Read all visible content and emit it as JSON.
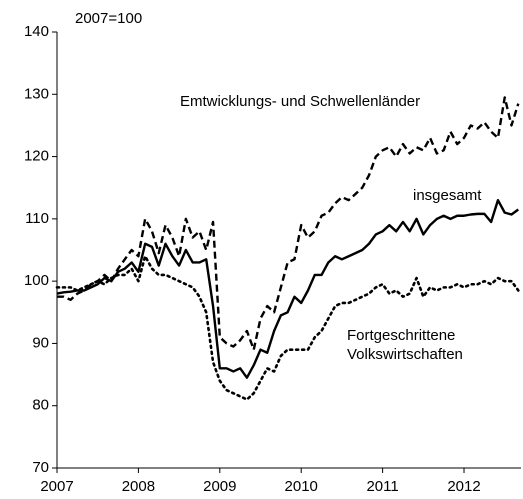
{
  "chart_data": {
    "type": "line",
    "annotations": [
      "2007=100"
    ],
    "x": [
      2007,
      2007.083,
      2007.167,
      2007.25,
      2007.333,
      2007.417,
      2007.5,
      2007.583,
      2007.667,
      2007.75,
      2007.833,
      2007.917,
      2008,
      2008.083,
      2008.167,
      2008.25,
      2008.333,
      2008.417,
      2008.5,
      2008.583,
      2008.667,
      2008.75,
      2008.833,
      2008.917,
      2009,
      2009.083,
      2009.167,
      2009.25,
      2009.333,
      2009.417,
      2009.5,
      2009.583,
      2009.667,
      2009.75,
      2009.833,
      2009.917,
      2010,
      2010.083,
      2010.167,
      2010.25,
      2010.333,
      2010.417,
      2010.5,
      2010.583,
      2010.667,
      2010.75,
      2010.833,
      2010.917,
      2011,
      2011.083,
      2011.167,
      2011.25,
      2011.333,
      2011.417,
      2011.5,
      2011.583,
      2011.667,
      2011.75,
      2011.833,
      2011.917,
      2012,
      2012.083,
      2012.167,
      2012.25,
      2012.333,
      2012.417,
      2012.5,
      2012.583,
      2012.667
    ],
    "series": [
      {
        "name": "Emtwicklungs- und Schwellenländer",
        "color": "#000000",
        "style": "dashed",
        "values": [
          97.5,
          97.5,
          97,
          98,
          98.5,
          99.5,
          100,
          101,
          100,
          102,
          103.5,
          105,
          104,
          110,
          108,
          104.5,
          109,
          107,
          104,
          110,
          107,
          108,
          105,
          109.5,
          91,
          90,
          89.5,
          90.5,
          92,
          89,
          94,
          96,
          95,
          99,
          103,
          103.5,
          109,
          107,
          108,
          110.5,
          111,
          112.5,
          113.5,
          113,
          114,
          115,
          117,
          120,
          121,
          121.5,
          120,
          122,
          120.5,
          121.5,
          121,
          123,
          120.5,
          121,
          124,
          122,
          123,
          125,
          124.5,
          125.5,
          124,
          123,
          129.5,
          125,
          128.5
        ]
      },
      {
        "name": "insgesamt",
        "color": "#000000",
        "style": "solid",
        "values": [
          98,
          98.2,
          98.3,
          98.5,
          98.5,
          99,
          99.5,
          100.5,
          100,
          101.5,
          102,
          103,
          101.5,
          106,
          105.5,
          102.5,
          106,
          104,
          102.5,
          105,
          103,
          103,
          103.5,
          96,
          86,
          86,
          85.5,
          86,
          84.5,
          86.5,
          89,
          88.5,
          92,
          94.5,
          95,
          97.5,
          96.5,
          98.5,
          101,
          101,
          103,
          104,
          103.5,
          104,
          104.5,
          105,
          106,
          107.5,
          108,
          109,
          108,
          109.5,
          108,
          110,
          107.5,
          109,
          110,
          110.5,
          110,
          110.5,
          110.5,
          110.7,
          110.8,
          110.8,
          109.5,
          113,
          111,
          110.7,
          111.5
        ]
      },
      {
        "name": "Fortgeschrittene Volkswirtschaften",
        "color": "#000000",
        "style": "dotted",
        "values": [
          99,
          99,
          99,
          98.5,
          99,
          99.5,
          100,
          99.5,
          100.5,
          101,
          101,
          102,
          100,
          104,
          102,
          101,
          101,
          100.5,
          100,
          99.5,
          99,
          97.5,
          95,
          87,
          84,
          82.5,
          82,
          81.5,
          81,
          82,
          84,
          86,
          85.5,
          88,
          89,
          89,
          89,
          89,
          91,
          92,
          94,
          96,
          96.5,
          96.5,
          97,
          97.5,
          98,
          99,
          99.5,
          98,
          98.5,
          97.5,
          98,
          100.5,
          97.5,
          99,
          98.5,
          99,
          99,
          99.5,
          99,
          99.5,
          99.5,
          100,
          99.5,
          100.5,
          100,
          100,
          98.5
        ]
      }
    ],
    "xlim": [
      2007,
      2012.7
    ],
    "xticks": [
      2007,
      2008,
      2009,
      2010,
      2011,
      2012
    ],
    "ylim": [
      70,
      140
    ],
    "yticks": [
      70,
      80,
      90,
      100,
      110,
      120,
      130,
      140
    ],
    "grid": false
  }
}
